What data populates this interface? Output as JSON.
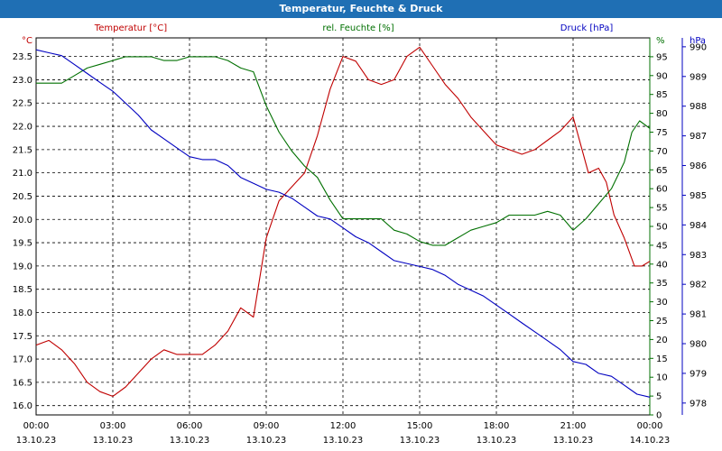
{
  "title": "Temperatur, Feuchte & Druck",
  "colors": {
    "title_bg": "#1f6fb4",
    "temperature": "#c00000",
    "humidity": "#007000",
    "pressure": "#0000c0",
    "grid": "#000000"
  },
  "chart_data": {
    "type": "line",
    "title": "Temperatur, Feuchte & Druck",
    "grid": true,
    "x_ticks": [
      {
        "time": "00:00",
        "date": "13.10.23"
      },
      {
        "time": "03:00",
        "date": "13.10.23"
      },
      {
        "time": "06:00",
        "date": "13.10.23"
      },
      {
        "time": "09:00",
        "date": "13.10.23"
      },
      {
        "time": "12:00",
        "date": "13.10.23"
      },
      {
        "time": "15:00",
        "date": "13.10.23"
      },
      {
        "time": "18:00",
        "date": "13.10.23"
      },
      {
        "time": "21:00",
        "date": "13.10.23"
      },
      {
        "time": "00:00",
        "date": "14.10.23"
      }
    ],
    "xlim": [
      0,
      24
    ],
    "axes": {
      "temperature": {
        "label": "Temperatur [°C]",
        "unit": "°C",
        "min": 15.8,
        "max": 23.9,
        "ticks": [
          "16.0",
          "16.5",
          "17.0",
          "17.5",
          "18.0",
          "18.5",
          "19.0",
          "19.5",
          "20.0",
          "20.5",
          "21.0",
          "21.5",
          "22.0",
          "22.5",
          "23.0",
          "23.5"
        ]
      },
      "humidity": {
        "label": "rel. Feuchte [%]",
        "unit": "%",
        "min": 0,
        "max": 100,
        "ticks": [
          "0",
          "5",
          "10",
          "15",
          "20",
          "25",
          "30",
          "35",
          "40",
          "45",
          "50",
          "55",
          "60",
          "65",
          "70",
          "75",
          "80",
          "85",
          "90",
          "95",
          "%"
        ]
      },
      "pressure": {
        "label": "Druck [hPa]",
        "unit": "hPa",
        "min": 977.6,
        "max": 990.3,
        "ticks": [
          "978",
          "979",
          "980",
          "981",
          "982",
          "983",
          "984",
          "985",
          "986",
          "987",
          "988",
          "989",
          "990",
          "hPa"
        ]
      }
    },
    "series": [
      {
        "name": "Temperatur [°C]",
        "axis": "temperature",
        "x": [
          0,
          0.5,
          1,
          1.5,
          2,
          2.5,
          3,
          3.5,
          4,
          4.5,
          5,
          5.5,
          6,
          6.5,
          7,
          7.5,
          8,
          8.5,
          9,
          9.5,
          10,
          10.5,
          11,
          11.5,
          12,
          12.5,
          13,
          13.5,
          14,
          14.5,
          15,
          15.5,
          16,
          16.5,
          17,
          17.5,
          18,
          18.5,
          19,
          19.5,
          20,
          20.5,
          21,
          21.3,
          21.6,
          22,
          22.3,
          22.6,
          23,
          23.4,
          23.7,
          24
        ],
        "values": [
          17.3,
          17.4,
          17.2,
          16.9,
          16.5,
          16.3,
          16.2,
          16.4,
          16.7,
          17.0,
          17.2,
          17.1,
          17.1,
          17.1,
          17.3,
          17.6,
          18.1,
          17.9,
          19.6,
          20.4,
          20.7,
          21.0,
          21.8,
          22.8,
          23.5,
          23.4,
          23.0,
          22.9,
          23.0,
          23.5,
          23.7,
          23.3,
          22.9,
          22.6,
          22.2,
          21.9,
          21.6,
          21.5,
          21.4,
          21.5,
          21.7,
          21.9,
          22.2,
          21.6,
          21.0,
          21.1,
          20.8,
          20.1,
          19.6,
          19.0,
          19.0,
          19.1
        ]
      },
      {
        "name": "rel. Feuchte [%]",
        "axis": "humidity",
        "x": [
          0,
          0.5,
          1,
          1.5,
          2,
          2.5,
          3,
          3.5,
          4,
          4.5,
          5,
          5.5,
          6,
          6.5,
          7,
          7.5,
          8,
          8.5,
          9,
          9.5,
          10,
          10.5,
          11,
          11.5,
          12,
          12.5,
          13,
          13.5,
          14,
          14.5,
          15,
          15.5,
          16,
          16.5,
          17,
          17.5,
          18,
          18.5,
          19,
          19.5,
          20,
          20.5,
          21,
          21.5,
          22,
          22.5,
          23,
          23.3,
          23.6,
          24
        ],
        "values": [
          88,
          88,
          88,
          90,
          92,
          93,
          94,
          95,
          95,
          95,
          94,
          94,
          95,
          95,
          95,
          94,
          92,
          91,
          82,
          75,
          70,
          66,
          63,
          57,
          52,
          52,
          52,
          52,
          49,
          48,
          46,
          45,
          45,
          47,
          49,
          50,
          51,
          53,
          53,
          53,
          54,
          53,
          49,
          52,
          56,
          60,
          67,
          75,
          78,
          76
        ]
      },
      {
        "name": "Druck [hPa]",
        "axis": "pressure",
        "x": [
          0,
          0.5,
          1,
          1.5,
          2,
          2.5,
          3,
          3.5,
          4,
          4.5,
          5,
          5.5,
          6,
          6.5,
          7,
          7.5,
          8,
          8.5,
          9,
          9.5,
          10,
          10.5,
          11,
          11.5,
          12,
          12.5,
          13,
          13.5,
          14,
          14.5,
          15,
          15.5,
          16,
          16.5,
          17,
          17.5,
          18,
          18.5,
          19,
          19.5,
          20,
          20.5,
          21,
          21.5,
          22,
          22.5,
          23,
          23.5,
          24
        ],
        "values": [
          989.9,
          989.8,
          989.7,
          989.4,
          989.1,
          988.8,
          988.5,
          988.1,
          987.7,
          987.2,
          986.9,
          986.6,
          986.3,
          986.2,
          986.2,
          986.0,
          985.6,
          985.4,
          985.2,
          985.1,
          984.9,
          984.6,
          984.3,
          984.2,
          983.9,
          983.6,
          983.4,
          983.1,
          982.8,
          982.7,
          982.6,
          982.5,
          982.3,
          982.0,
          981.8,
          981.6,
          981.3,
          981.0,
          980.7,
          980.4,
          980.1,
          979.8,
          979.4,
          979.3,
          979.0,
          978.9,
          978.6,
          978.3,
          978.2
        ]
      }
    ]
  }
}
